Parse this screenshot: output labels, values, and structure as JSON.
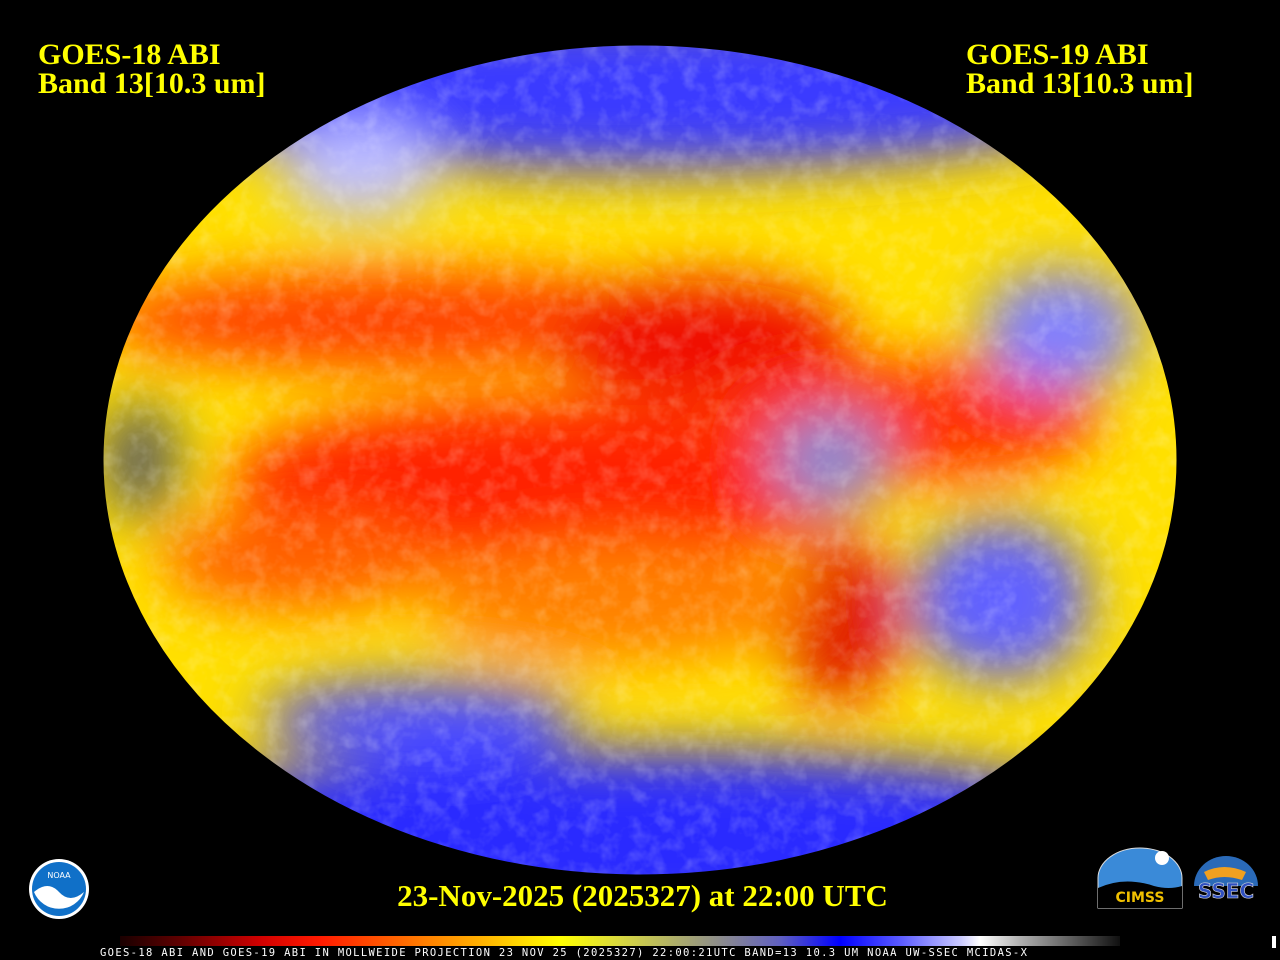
{
  "header": {
    "left_title": [
      "GOES-18 ABI",
      "Band 13[10.3 um]"
    ],
    "right_title": [
      "GOES-19 ABI",
      "Band 13[10.3 um]"
    ]
  },
  "map": {
    "projection": "Mollweide",
    "product": "infrared brightness temperature composite",
    "colors": {
      "warm": "#ff2000",
      "mid": "#ffff00",
      "cold": "#0000ff",
      "coldest": "#ffffff",
      "text": "#ffff00"
    }
  },
  "date_line": "23-Nov-2025 (2025327) at 22:00 UTC",
  "footer_text": "GOES-18 ABI AND GOES-19 ABI IN MOLLWEIDE PROJECTION 23 NOV 25 (2025327) 22:00:21UTC BAND=13 10.3 UM NOAA UW-SSEC MCIDAS-X",
  "logos": {
    "noaa": "NOAA",
    "cimss": "CIMSS",
    "ssec": "SSEC"
  }
}
